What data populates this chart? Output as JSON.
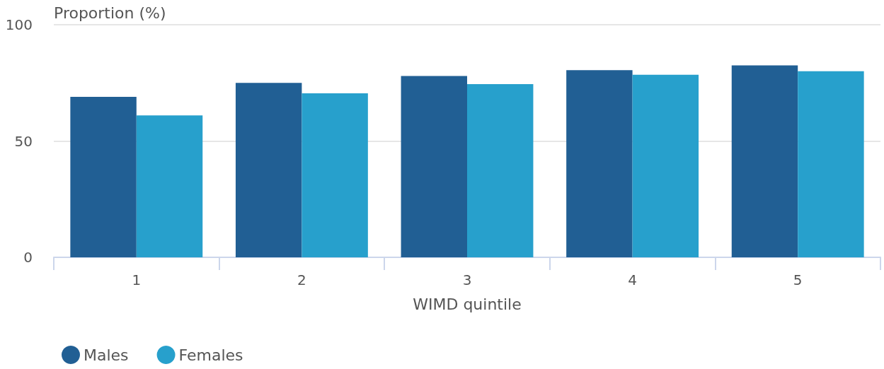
{
  "chart_data": {
    "type": "bar",
    "ylabel": "Proportion (%)",
    "xlabel": "WIMD quintile",
    "categories": [
      "1",
      "2",
      "3",
      "4",
      "5"
    ],
    "series": [
      {
        "name": "Males",
        "color": "#215f94",
        "values": [
          69,
          75,
          78,
          80.5,
          82.5
        ]
      },
      {
        "name": "Females",
        "color": "#27a0cc",
        "values": [
          61,
          70.5,
          74.5,
          78.5,
          80
        ]
      }
    ],
    "ylim": [
      0,
      100
    ],
    "yticks": [
      0,
      50,
      100
    ],
    "grid": "y",
    "legend": "bottom left"
  }
}
